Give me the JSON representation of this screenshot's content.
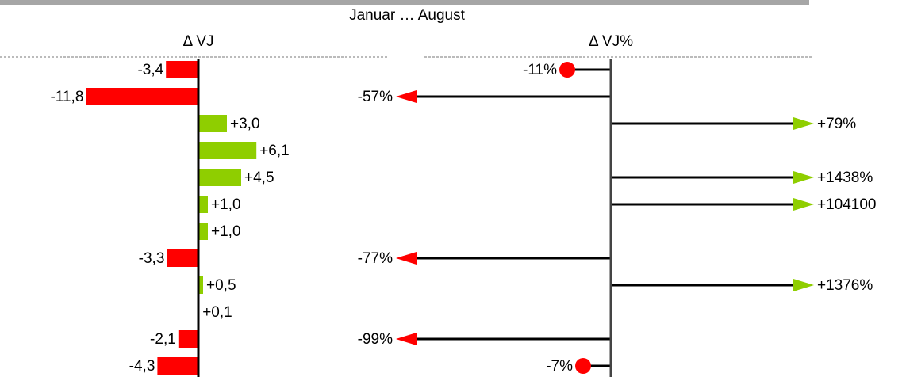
{
  "header": {
    "title": "Januar … August"
  },
  "chart_data": [
    {
      "type": "bar",
      "title": "Δ VJ",
      "values": [
        -3.4,
        -11.8,
        3.0,
        6.1,
        4.5,
        1.0,
        1.0,
        -3.3,
        0.5,
        0.1,
        -2.1,
        -4.3
      ],
      "value_labels": [
        "-3,4",
        "-11,8",
        "+3,0",
        "+6,1",
        "+4,5",
        "+1,0",
        "+1,0",
        "-3,3",
        "+0,5",
        "+0,1",
        "-2,1",
        "-4,3"
      ],
      "xlim": [
        -20,
        20
      ],
      "color_negative": "#ff0000",
      "color_positive": "#8fce00"
    },
    {
      "type": "pin",
      "title": "Δ VJ%",
      "values": [
        -11,
        -57,
        79,
        null,
        1438,
        104100,
        null,
        -77,
        1376,
        null,
        -99,
        -7
      ],
      "value_labels": [
        "-11%",
        "-57%",
        "+79%",
        null,
        "+1438%",
        "+104100",
        null,
        "-77%",
        "+1376%",
        null,
        "-99%",
        "-7%"
      ],
      "xlim": [
        -49,
        46
      ],
      "color_negative": "#ff0000",
      "color_positive": "#8fce00"
    }
  ]
}
